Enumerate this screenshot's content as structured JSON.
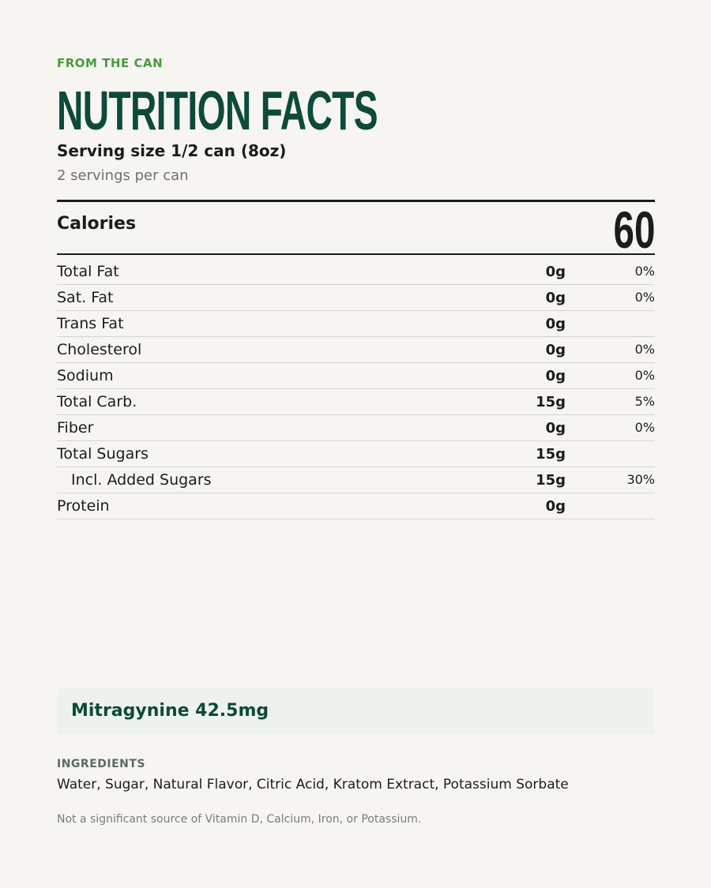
{
  "header": {
    "eyebrow": "FROM THE CAN",
    "title": "NUTRITION FACTS",
    "serving_size": "Serving size 1/2 can (8oz)",
    "servings_per": "2 servings per can"
  },
  "calories": {
    "label": "Calories",
    "value": "60"
  },
  "nutrients": [
    {
      "name": "Total Fat",
      "amount": "0g",
      "dv": "0%"
    },
    {
      "name": "Sat. Fat",
      "amount": "0g",
      "dv": "0%"
    },
    {
      "name": "Trans Fat",
      "amount": "0g",
      "dv": ""
    },
    {
      "name": "Cholesterol",
      "amount": "0g",
      "dv": "0%"
    },
    {
      "name": "Sodium",
      "amount": "0g",
      "dv": "0%"
    },
    {
      "name": "Total Carb.",
      "amount": "15g",
      "dv": "5%"
    },
    {
      "name": "Fiber",
      "amount": "0g",
      "dv": "0%"
    },
    {
      "name": "Total Sugars",
      "amount": "15g",
      "dv": ""
    },
    {
      "name": "Incl. Added Sugars",
      "amount": "15g",
      "dv": "30%",
      "indent": true
    },
    {
      "name": "Protein",
      "amount": "0g",
      "dv": ""
    }
  ],
  "callout": {
    "text": "Mitragynine 42.5mg"
  },
  "ingredients": {
    "heading": "INGREDIENTS",
    "list": "Water, Sugar, Natural Flavor, Citric Acid, Kratom Extract, Potassium Sorbate"
  },
  "disclaimer": "Not a significant source of Vitamin D, Calcium, Iron, or Potassium.",
  "colors": {
    "background": "#f6f5f1",
    "brand_green": "#0d4a3a",
    "accent_green": "#4a9a3e",
    "callout_bg": "#eef2ed"
  }
}
